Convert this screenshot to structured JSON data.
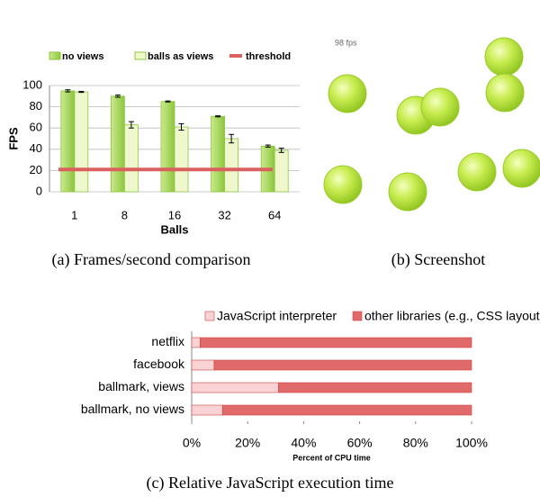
{
  "chart_data": [
    {
      "type": "bar",
      "caption": "(a) Frames/second comparison",
      "xlabel": "Balls",
      "ylabel": "FPS",
      "categories": [
        "1",
        "8",
        "16",
        "32",
        "64"
      ],
      "series": [
        {
          "name": "no views",
          "color": "#a6d45c",
          "values": [
            95,
            90,
            85,
            71,
            43
          ],
          "errors": [
            1,
            1,
            0.5,
            0.5,
            1
          ]
        },
        {
          "name": "balls as views",
          "color": "#eef8cc",
          "values": [
            94,
            63,
            61,
            50,
            39
          ],
          "errors": [
            0.5,
            3,
            3,
            4,
            2
          ]
        }
      ],
      "threshold": {
        "name": "threshold",
        "color": "#d9605e",
        "value": 21
      },
      "ylim": [
        0,
        100
      ],
      "yticks": [
        0,
        20,
        40,
        60,
        80,
        100
      ],
      "grid": true
    },
    {
      "type": "barh",
      "caption": "(c) Relative JavaScript execution time",
      "xlabel": "Percent of CPU time",
      "categories": [
        "netflix",
        "facebook",
        "ballmark, views",
        "ballmark, no views"
      ],
      "series": [
        {
          "name": "JavaScript interpreter",
          "color": "#f9d3d3",
          "values": [
            3,
            8,
            31,
            11
          ]
        },
        {
          "name": "other libraries (e.g., CSS layout)",
          "color": "#e06a6a",
          "values": [
            97,
            92,
            69,
            89
          ]
        }
      ],
      "xlim": [
        0,
        100
      ],
      "xticks": [
        {
          "value": 0,
          "label": "0%"
        },
        {
          "value": 20,
          "label": "20%"
        },
        {
          "value": 40,
          "label": "40%"
        },
        {
          "value": 60,
          "label": "60%"
        },
        {
          "value": 80,
          "label": "80%"
        },
        {
          "value": 100,
          "label": "100%"
        }
      ]
    }
  ],
  "screenshot": {
    "fps_label": "98 fps",
    "caption": "(b) Screenshot"
  }
}
